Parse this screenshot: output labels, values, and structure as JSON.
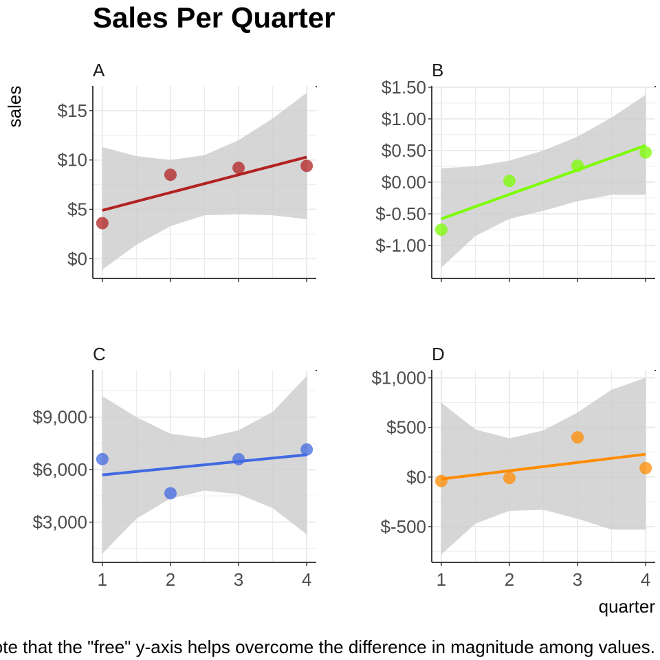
{
  "chart_data": {
    "type": "scatter",
    "title": "Sales Per Quarter",
    "xlabel": "quarter",
    "ylabel": "sales",
    "caption": "Note that the \"free\" y-axis helps overcome the difference in magnitude among values.",
    "facets": [
      {
        "label": "A",
        "color": "#B22222",
        "x": [
          1,
          2,
          3,
          4
        ],
        "y": [
          3.6,
          8.5,
          9.2,
          9.4
        ],
        "fit": [
          4.9,
          10.3
        ],
        "band": [
          {
            "x": 1,
            "lo": -1.1,
            "hi": 11.3
          },
          {
            "x": 1.5,
            "lo": 1.4,
            "hi": 10.4
          },
          {
            "x": 2,
            "lo": 3.3,
            "hi": 10.0
          },
          {
            "x": 2.5,
            "lo": 4.4,
            "hi": 10.5
          },
          {
            "x": 3,
            "lo": 4.5,
            "hi": 12.0
          },
          {
            "x": 3.5,
            "lo": 4.4,
            "hi": 14.2
          },
          {
            "x": 4,
            "lo": 4.0,
            "hi": 16.8
          }
        ],
        "ylim": [
          -2.0,
          17.5
        ],
        "yticks": [
          0,
          5,
          10,
          15
        ],
        "yticklabels": [
          "$0",
          "$5",
          "$10",
          "$15"
        ],
        "show_xticks": false
      },
      {
        "label": "B",
        "color": "#7CFC00",
        "x": [
          1,
          2,
          3,
          4
        ],
        "y": [
          -0.75,
          0.02,
          0.26,
          0.47
        ],
        "fit": [
          -0.58,
          0.58
        ],
        "band": [
          {
            "x": 1,
            "lo": -1.35,
            "hi": 0.22
          },
          {
            "x": 1.5,
            "lo": -0.85,
            "hi": 0.25
          },
          {
            "x": 2,
            "lo": -0.58,
            "hi": 0.34
          },
          {
            "x": 2.5,
            "lo": -0.45,
            "hi": 0.5
          },
          {
            "x": 3,
            "lo": -0.3,
            "hi": 0.72
          },
          {
            "x": 3.5,
            "lo": -0.2,
            "hi": 1.02
          },
          {
            "x": 4,
            "lo": -0.2,
            "hi": 1.38
          }
        ],
        "ylim": [
          -1.52,
          1.52
        ],
        "yticks": [
          -1.0,
          -0.5,
          0.0,
          0.5,
          1.0,
          1.5
        ],
        "yticklabels": [
          "$-1.00",
          "$-0.50",
          "$0.00",
          "$0.50",
          "$1.00",
          "$1.50"
        ],
        "show_xticks": false
      },
      {
        "label": "C",
        "color": "#4169E1",
        "x": [
          1,
          2,
          3,
          4
        ],
        "y": [
          6600,
          4650,
          6600,
          7150
        ],
        "fit": [
          5700,
          6850
        ],
        "band": [
          {
            "x": 1,
            "lo": 1200,
            "hi": 10200
          },
          {
            "x": 1.5,
            "lo": 3200,
            "hi": 9000
          },
          {
            "x": 2,
            "lo": 4350,
            "hi": 8050
          },
          {
            "x": 2.5,
            "lo": 4800,
            "hi": 7800
          },
          {
            "x": 3,
            "lo": 4600,
            "hi": 8250
          },
          {
            "x": 3.5,
            "lo": 3800,
            "hi": 9300
          },
          {
            "x": 4,
            "lo": 2300,
            "hi": 11350
          }
        ],
        "ylim": [
          700,
          11700
        ],
        "yticks": [
          3000,
          6000,
          9000
        ],
        "yticklabels": [
          "$3,000",
          "$6,000",
          "$9,000"
        ],
        "show_xticks": true
      },
      {
        "label": "D",
        "color": "#FF8C00",
        "x": [
          1,
          2,
          3,
          4
        ],
        "y": [
          -40,
          -10,
          400,
          90
        ],
        "fit": [
          -20,
          230
        ],
        "band": [
          {
            "x": 1,
            "lo": -780,
            "hi": 750
          },
          {
            "x": 1.5,
            "lo": -470,
            "hi": 480
          },
          {
            "x": 2,
            "lo": -340,
            "hi": 390
          },
          {
            "x": 2.5,
            "lo": -330,
            "hi": 470
          },
          {
            "x": 3,
            "lo": -420,
            "hi": 650
          },
          {
            "x": 3.5,
            "lo": -530,
            "hi": 880
          },
          {
            "x": 4,
            "lo": -530,
            "hi": 1000
          }
        ],
        "ylim": [
          -860,
          1080
        ],
        "yticks": [
          -500,
          0,
          500,
          1000
        ],
        "yticklabels": [
          "$-500",
          "$0",
          "$500",
          "$1,000"
        ],
        "show_xticks": true
      }
    ],
    "xticks": [
      1,
      2,
      3,
      4
    ],
    "xticklabels": [
      "1",
      "2",
      "3",
      "4"
    ],
    "xlim": [
      0.86,
      4.14
    ],
    "grid": true,
    "band_color": "#CCCCCC",
    "grid_color": "#EBEBEB"
  }
}
